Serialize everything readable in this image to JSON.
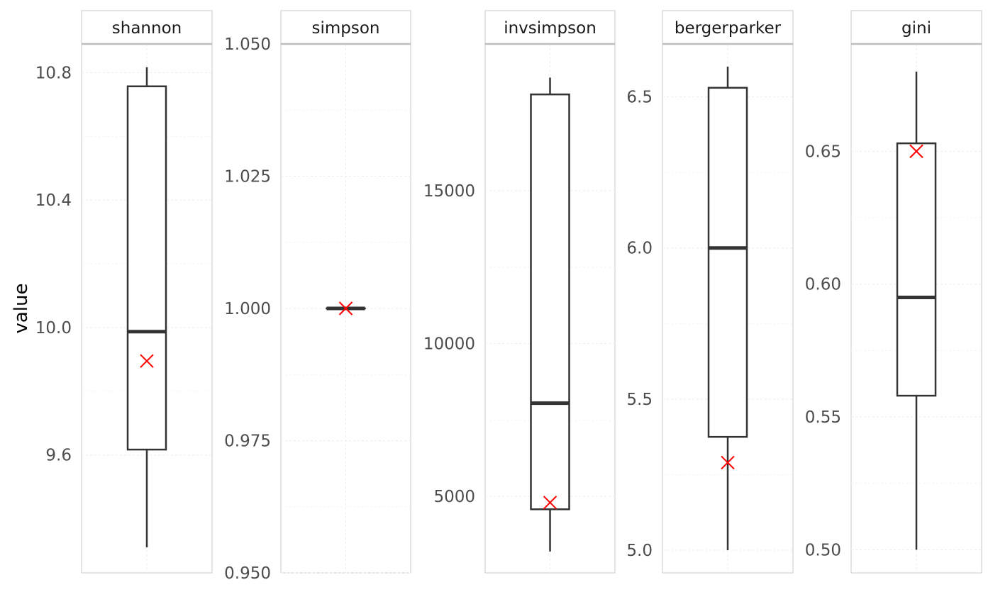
{
  "chart_data": {
    "type": "boxplot",
    "ylabel": "value",
    "grid": true,
    "legend": "none",
    "colors": {
      "box": "#333333",
      "mean_marker": "#ff0000",
      "strip_line": "#bdbdbd",
      "panel_border": "#c8c8c8",
      "grid": "#ededed"
    },
    "panels": [
      {
        "name": "shannon",
        "ylim": [
          9.23,
          10.89
        ],
        "ticks": [
          9.6,
          10.0,
          10.4,
          10.8
        ],
        "tick_labels": [
          "9.6",
          "10.0",
          "10.4",
          "10.8"
        ],
        "whisker_low": 9.31,
        "q1": 9.617,
        "median": 9.987,
        "q3": 10.757,
        "whisker_high": 10.817,
        "mean": 9.895
      },
      {
        "name": "simpson",
        "ylim": [
          0.95,
          1.05
        ],
        "ticks": [
          0.95,
          0.975,
          1.0,
          1.025,
          1.05
        ],
        "tick_labels": [
          "0.950",
          "0.975",
          "1.000",
          "1.025",
          "1.050"
        ],
        "whisker_low": 1.0,
        "q1": 1.0,
        "median": 1.0,
        "q3": 1.0,
        "whisker_high": 1.0,
        "mean": 1.0
      },
      {
        "name": "invsimpson",
        "ylim": [
          2500,
          19800
        ],
        "ticks": [
          5000,
          10000,
          15000
        ],
        "tick_labels": [
          "5000",
          "10000",
          "15000"
        ],
        "whisker_low": 3200,
        "q1": 4580,
        "median": 8050,
        "q3": 18150,
        "whisker_high": 18700,
        "mean": 4800
      },
      {
        "name": "bergerparker",
        "ylim": [
          4.925,
          6.675
        ],
        "ticks": [
          5.0,
          5.5,
          6.0,
          6.5
        ],
        "tick_labels": [
          "5.0",
          "5.5",
          "6.0",
          "6.5"
        ],
        "whisker_low": 5.0,
        "q1": 5.375,
        "median": 6.0,
        "q3": 6.53,
        "whisker_high": 6.6,
        "mean": 5.29
      },
      {
        "name": "gini",
        "ylim": [
          0.4913,
          0.6904
        ],
        "ticks": [
          0.5,
          0.55,
          0.6,
          0.65
        ],
        "tick_labels": [
          "0.50",
          "0.55",
          "0.60",
          "0.65"
        ],
        "whisker_low": 0.5,
        "q1": 0.558,
        "median": 0.595,
        "q3": 0.653,
        "whisker_high": 0.68,
        "mean": 0.65
      }
    ]
  }
}
